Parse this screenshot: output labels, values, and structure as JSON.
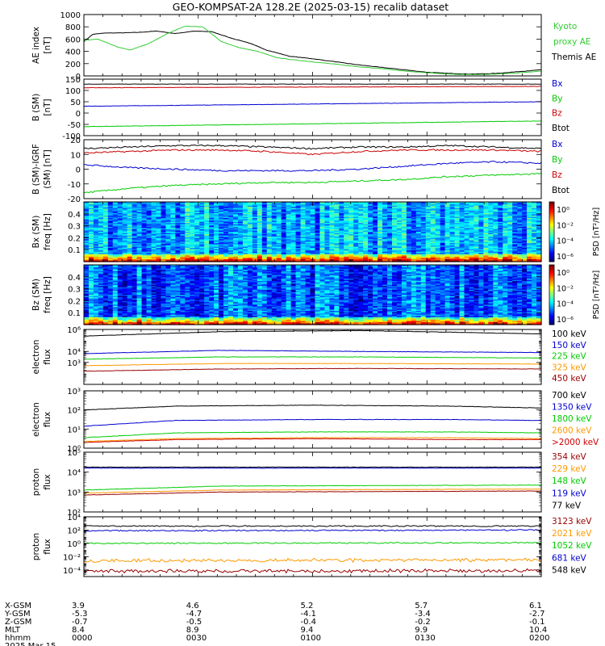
{
  "title": "GEO-KOMPSAT-2A 128.2E (2025-03-15) recalib dataset",
  "colors": {
    "black": "#000000",
    "blue": "#0000d0",
    "green": "#00cc00",
    "red": "#cc0000",
    "orange": "#ff9900",
    "darkred": "#990000",
    "kyoto": "#33cc33"
  },
  "chart_data": [
    {
      "type": "line",
      "name": "ae-panel",
      "ylabel": "AE index [nT]",
      "yticks": [
        "1000",
        "800",
        "600",
        "400",
        "200",
        "0"
      ],
      "ylim": [
        0,
        1000
      ],
      "legend": [
        {
          "label": "Kyoto",
          "color": "#33cc33"
        },
        {
          "label": "proxy AE",
          "color": "#33cc33"
        },
        {
          "label": "Themis AE",
          "color": "#000000"
        }
      ],
      "series": [
        {
          "name": "Themis AE",
          "color": "#000000",
          "x": [
            0,
            0.02,
            0.05,
            0.08,
            0.12,
            0.16,
            0.2,
            0.24,
            0.28,
            0.32,
            0.36,
            0.4,
            0.45,
            0.5,
            0.55,
            0.6,
            0.65,
            0.7,
            0.75,
            0.8,
            0.85,
            0.9,
            0.95,
            1.0
          ],
          "values": [
            560,
            680,
            700,
            700,
            710,
            730,
            690,
            730,
            720,
            620,
            540,
            420,
            320,
            280,
            230,
            180,
            140,
            100,
            60,
            40,
            30,
            40,
            70,
            100
          ]
        },
        {
          "name": "Kyoto proxy AE",
          "color": "#33cc33",
          "x": [
            0,
            0.03,
            0.07,
            0.1,
            0.14,
            0.18,
            0.22,
            0.26,
            0.3,
            0.34,
            0.38,
            0.42,
            0.46,
            0.5,
            0.55,
            0.6,
            0.65,
            0.7,
            0.75,
            0.8,
            0.85,
            0.9,
            0.95,
            1.0
          ],
          "values": [
            580,
            600,
            480,
            420,
            520,
            680,
            810,
            800,
            560,
            460,
            400,
            300,
            260,
            230,
            190,
            150,
            120,
            80,
            50,
            30,
            20,
            30,
            50,
            80
          ]
        }
      ]
    },
    {
      "type": "line",
      "name": "b-sm-panel",
      "ylabel": "B (SM) [nT]",
      "yticks": [
        "150",
        "100",
        "50",
        "0",
        "-50",
        "-100"
      ],
      "ylim": [
        -100,
        150
      ],
      "legend": [
        {
          "label": "Bx",
          "color": "#0000d0"
        },
        {
          "label": "By",
          "color": "#00cc00"
        },
        {
          "label": "Bz",
          "color": "#cc0000"
        },
        {
          "label": "Btot",
          "color": "#000000"
        }
      ],
      "series": [
        {
          "name": "Btot",
          "color": "#000000",
          "x": [
            0,
            1
          ],
          "values": [
            128,
            128
          ]
        },
        {
          "name": "Bz",
          "color": "#cc0000",
          "x": [
            0,
            1
          ],
          "values": [
            112,
            118
          ]
        },
        {
          "name": "Bx",
          "color": "#0000d0",
          "x": [
            0,
            1
          ],
          "values": [
            30,
            50
          ]
        },
        {
          "name": "By",
          "color": "#00cc00",
          "x": [
            0,
            1
          ],
          "values": [
            -60,
            -35
          ]
        }
      ]
    },
    {
      "type": "line",
      "name": "b-minus-igrf-panel",
      "ylabel": "B (SM)-IGRF (SM) [nT]",
      "yticks": [
        "20",
        "10",
        "0",
        "-10",
        "-20"
      ],
      "ylim": [
        -20,
        20
      ],
      "legend": [
        {
          "label": "Bx",
          "color": "#0000d0"
        },
        {
          "label": "By",
          "color": "#00cc00"
        },
        {
          "label": "Bz",
          "color": "#cc0000"
        },
        {
          "label": "Btot",
          "color": "#000000"
        }
      ],
      "series": [
        {
          "name": "Btot",
          "color": "#000000",
          "x": [
            0,
            0.1,
            0.2,
            0.3,
            0.4,
            0.5,
            0.6,
            0.7,
            0.8,
            0.9,
            1.0
          ],
          "values": [
            14,
            15,
            16,
            16,
            15,
            14,
            15,
            15,
            16,
            15,
            14
          ]
        },
        {
          "name": "Bz",
          "color": "#cc0000",
          "x": [
            0,
            0.1,
            0.2,
            0.3,
            0.4,
            0.5,
            0.6,
            0.7,
            0.8,
            0.9,
            1.0
          ],
          "values": [
            11,
            12,
            13,
            13,
            12,
            10,
            12,
            13,
            13,
            13,
            12
          ]
        },
        {
          "name": "Bx",
          "color": "#0000d0",
          "x": [
            0,
            0.1,
            0.2,
            0.3,
            0.4,
            0.5,
            0.6,
            0.7,
            0.8,
            0.9,
            1.0
          ],
          "values": [
            3,
            1,
            0,
            -1,
            -1,
            -1,
            0,
            2,
            4,
            5,
            4
          ]
        },
        {
          "name": "By",
          "color": "#00cc00",
          "x": [
            0,
            0.1,
            0.2,
            0.3,
            0.4,
            0.5,
            0.6,
            0.7,
            0.8,
            0.9,
            1.0
          ],
          "values": [
            -16,
            -13,
            -11,
            -10,
            -9,
            -9,
            -8,
            -7,
            -5,
            -4,
            -3
          ]
        }
      ]
    },
    {
      "type": "heatmap",
      "name": "bx-spectrogram",
      "ylabel": "Bx (SM) freq [Hz]",
      "yticks": [
        "0.4",
        "0.3",
        "0.2",
        "0.1"
      ],
      "ylim": [
        0,
        0.5
      ],
      "colorbar_label": "PSD [nT²/Hz]",
      "colorbar_ticks": [
        "10⁰",
        "10⁻²",
        "10⁻⁴",
        "10⁻⁶"
      ],
      "intensity_base": 0.3,
      "intensity_lowfreq_boost": 0.55
    },
    {
      "type": "heatmap",
      "name": "bz-spectrogram",
      "ylabel": "Bz (SM) freq [Hz]",
      "yticks": [
        "0.4",
        "0.3",
        "0.2",
        "0.1"
      ],
      "ylim": [
        0,
        0.5
      ],
      "colorbar_label": "PSD [nT²/Hz]",
      "colorbar_ticks": [
        "10⁰",
        "10⁻²",
        "10⁻⁴",
        "10⁻⁶"
      ],
      "intensity_base": 0.22,
      "intensity_lowfreq_boost": 0.6
    },
    {
      "type": "line",
      "log": true,
      "name": "electron-flux-low",
      "ylabel": "electron flux",
      "ylim_log": [
        1,
        6
      ],
      "yticks": [
        {
          "exp": 6,
          "label": "10⁶"
        },
        {
          "exp": 4,
          "label": "10⁴"
        },
        {
          "exp": 3,
          "label": "10³"
        }
      ],
      "legend": [
        {
          "label": "100 keV",
          "color": "#000000"
        },
        {
          "label": "150 keV",
          "color": "#0000d0"
        },
        {
          "label": "225 keV",
          "color": "#00cc00"
        },
        {
          "label": "325 keV",
          "color": "#ff9900"
        },
        {
          "label": "450 keV",
          "color": "#990000"
        }
      ],
      "series": [
        {
          "name": "100 keV",
          "color": "#000000",
          "x": [
            0,
            0.3,
            0.6,
            1
          ],
          "values": [
            5.4,
            5.8,
            5.9,
            5.6
          ]
        },
        {
          "name": "150 keV",
          "color": "#0000d0",
          "x": [
            0,
            0.3,
            0.6,
            1
          ],
          "values": [
            3.8,
            4.1,
            4.0,
            3.9
          ]
        },
        {
          "name": "225 keV",
          "color": "#00cc00",
          "x": [
            0,
            0.3,
            0.6,
            1
          ],
          "values": [
            3.3,
            3.5,
            3.5,
            3.4
          ]
        },
        {
          "name": "325 keV",
          "color": "#ff9900",
          "x": [
            0,
            0.3,
            0.6,
            1
          ],
          "values": [
            2.7,
            2.9,
            2.9,
            2.85
          ]
        },
        {
          "name": "450 keV",
          "color": "#990000",
          "x": [
            0,
            0.3,
            0.6,
            1
          ],
          "values": [
            2.2,
            2.4,
            2.45,
            2.4
          ]
        }
      ]
    },
    {
      "type": "line",
      "log": true,
      "name": "electron-flux-high",
      "ylabel": "electron flux",
      "ylim_log": [
        0,
        3
      ],
      "yticks": [
        {
          "exp": 3,
          "label": "10³"
        },
        {
          "exp": 2,
          "label": "10²"
        },
        {
          "exp": 1,
          "label": "10¹"
        },
        {
          "exp": 0,
          "label": "10⁰"
        }
      ],
      "legend": [
        {
          "label": "700 keV",
          "color": "#000000"
        },
        {
          "label": "1350 keV",
          "color": "#0000d0"
        },
        {
          "label": "1800 keV",
          "color": "#00cc00"
        },
        {
          "label": "2600 keV",
          "color": "#ff9900"
        },
        {
          "label": ">2000 keV",
          "color": "#cc0000"
        }
      ],
      "series": [
        {
          "name": "700 keV",
          "color": "#000000",
          "x": [
            0,
            0.2,
            0.5,
            0.8,
            1
          ],
          "values": [
            2.0,
            2.2,
            2.25,
            2.2,
            2.1
          ]
        },
        {
          "name": "1350 keV",
          "color": "#0000d0",
          "x": [
            0,
            0.2,
            0.5,
            0.8,
            1
          ],
          "values": [
            1.15,
            1.45,
            1.5,
            1.5,
            1.45
          ]
        },
        {
          "name": "1800 keV",
          "color": "#00cc00",
          "x": [
            0,
            0.2,
            0.5,
            0.8,
            1
          ],
          "values": [
            0.55,
            0.8,
            0.85,
            0.85,
            0.8
          ]
        },
        {
          "name": "2600 keV",
          "color": "#ff9900",
          "x": [
            0,
            0.2,
            0.5,
            0.8,
            1
          ],
          "values": [
            0.35,
            0.5,
            0.55,
            0.55,
            0.5
          ]
        },
        {
          "name": ">2000 keV",
          "color": "#cc0000",
          "x": [
            0,
            0.2,
            0.5,
            0.8,
            1
          ],
          "values": [
            0.3,
            0.45,
            0.5,
            0.45,
            0.45
          ]
        }
      ]
    },
    {
      "type": "line",
      "log": true,
      "name": "proton-flux-low",
      "ylabel": "proton flux",
      "ylim_log": [
        2,
        5
      ],
      "yticks": [
        {
          "exp": 5,
          "label": "10⁵"
        },
        {
          "exp": 4,
          "label": "10⁴"
        },
        {
          "exp": 3,
          "label": "10³"
        },
        {
          "exp": 2,
          "label": "10²"
        }
      ],
      "legend": [
        {
          "label": "354 keV",
          "color": "#990000"
        },
        {
          "label": "229 keV",
          "color": "#ff9900"
        },
        {
          "label": "148 keV",
          "color": "#00cc00"
        },
        {
          "label": "119 keV",
          "color": "#0000d0"
        },
        {
          "label": "77 keV",
          "color": "#000000"
        }
      ],
      "series": [
        {
          "name": "77 keV",
          "color": "#000000",
          "x": [
            0,
            1
          ],
          "values": [
            4.25,
            4.25
          ]
        },
        {
          "name": "119 keV",
          "color": "#0000d0",
          "x": [
            0,
            1
          ],
          "values": [
            4.2,
            4.2
          ]
        },
        {
          "name": "148 keV",
          "color": "#00cc00",
          "x": [
            0,
            0.3,
            1
          ],
          "values": [
            3.1,
            3.3,
            3.35
          ]
        },
        {
          "name": "229 keV",
          "color": "#ff9900",
          "x": [
            0,
            0.3,
            1
          ],
          "values": [
            2.95,
            3.1,
            3.15
          ]
        },
        {
          "name": "354 keV",
          "color": "#990000",
          "x": [
            0,
            0.3,
            1
          ],
          "values": [
            2.85,
            3.0,
            3.05
          ]
        }
      ]
    },
    {
      "type": "line",
      "log": true,
      "name": "proton-flux-high",
      "ylabel": "proton flux",
      "ylim_log": [
        -5,
        4
      ],
      "yticks": [
        {
          "exp": 4,
          "label": "10⁴"
        },
        {
          "exp": 2,
          "label": "10²"
        },
        {
          "exp": 0,
          "label": "10⁰"
        },
        {
          "exp": -2,
          "label": "10⁻²"
        },
        {
          "exp": -4,
          "label": "10⁻⁴"
        }
      ],
      "legend": [
        {
          "label": "3123 keV",
          "color": "#990000"
        },
        {
          "label": "2021 keV",
          "color": "#ff9900"
        },
        {
          "label": "1052 keV",
          "color": "#00cc00"
        },
        {
          "label": "681 keV",
          "color": "#0000d0"
        },
        {
          "label": "548 keV",
          "color": "#000000"
        }
      ],
      "series": [
        {
          "name": "548 keV",
          "color": "#000000",
          "x": [
            0,
            1
          ],
          "values": [
            2.6,
            2.6
          ]
        },
        {
          "name": "681 keV",
          "color": "#0000d0",
          "x": [
            0,
            1
          ],
          "values": [
            1.9,
            2.0
          ]
        },
        {
          "name": "1052 keV",
          "color": "#00cc00",
          "x": [
            0,
            1
          ],
          "values": [
            0.0,
            0.1
          ]
        },
        {
          "name": "2021 keV",
          "color": "#ff9900",
          "x": [
            0,
            1
          ],
          "values": [
            -2.6,
            -2.5
          ]
        },
        {
          "name": "3123 keV",
          "color": "#990000",
          "x": [
            0,
            1
          ],
          "values": [
            -4.2,
            -4.1
          ]
        }
      ]
    }
  ],
  "ephemeris": {
    "row_labels": [
      "X-GSM",
      "Y-GSM",
      "Z-GSM",
      "MLT",
      "hhmm",
      "2025 Mar 15"
    ],
    "columns": [
      {
        "x": 0.0,
        "values": [
          "3.9",
          "-5.3",
          "-0.7",
          "8.4",
          "0000"
        ]
      },
      {
        "x": 0.25,
        "values": [
          "4.6",
          "-4.7",
          "-0.5",
          "8.9",
          "0030"
        ]
      },
      {
        "x": 0.5,
        "values": [
          "5.2",
          "-4.1",
          "-0.4",
          "9.4",
          "0100"
        ]
      },
      {
        "x": 0.75,
        "values": [
          "5.7",
          "-3.4",
          "-0.2",
          "9.9",
          "0130"
        ]
      },
      {
        "x": 1.0,
        "values": [
          "6.1",
          "-2.7",
          "-0.1",
          "10.4",
          "0200"
        ]
      }
    ]
  }
}
